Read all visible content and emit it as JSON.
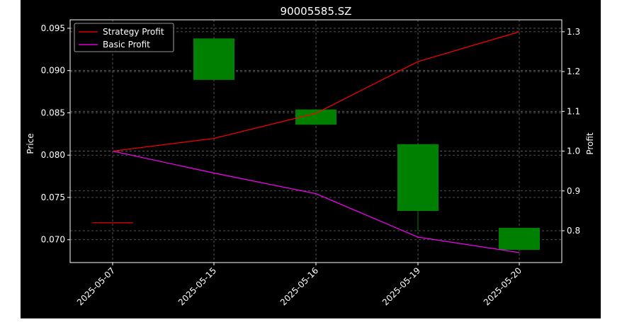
{
  "chart_data": {
    "type": "candlestick",
    "title": "90005585.SZ",
    "xlabel": "",
    "ylabel_left": "Price",
    "ylabel_right": "Profit",
    "categories": [
      "2025-05-07",
      "2025-05-15",
      "2025-05-16",
      "2025-05-19",
      "2025-05-20"
    ],
    "ylim_left": [
      0.0673,
      0.096
    ],
    "ylim_right": [
      0.72,
      1.33
    ],
    "yticks_left": [
      "0.070",
      "0.075",
      "0.080",
      "0.085",
      "0.090",
      "0.095"
    ],
    "yticks_right": [
      "0.8",
      "0.9",
      "1.0",
      "1.1",
      "1.2",
      "1.3"
    ],
    "grid": true,
    "legend_position": "top-left",
    "candles": [
      {
        "date": "2025-05-07",
        "open": 0.072,
        "close": 0.072,
        "high": 0.072,
        "low": 0.072,
        "color": "#ff0000"
      },
      {
        "date": "2025-05-15",
        "open": 0.0889,
        "close": 0.0938,
        "high": 0.0938,
        "low": 0.0889,
        "color": "#008000"
      },
      {
        "date": "2025-05-16",
        "open": 0.0836,
        "close": 0.0854,
        "high": 0.0854,
        "low": 0.0836,
        "color": "#008000"
      },
      {
        "date": "2025-05-19",
        "open": 0.0734,
        "close": 0.0813,
        "high": 0.0813,
        "low": 0.071,
        "color": "#008000"
      },
      {
        "date": "2025-05-20",
        "open": 0.0688,
        "close": 0.0714,
        "high": 0.0714,
        "low": 0.0688,
        "color": "#008000"
      }
    ],
    "series": [
      {
        "name": "Strategy Profit",
        "color": "#ff0000",
        "values": [
          1.0,
          1.032,
          1.095,
          1.225,
          1.3
        ]
      },
      {
        "name": "Basic Profit",
        "color": "#ff00ff",
        "values": [
          1.0,
          0.945,
          0.893,
          0.784,
          0.745
        ]
      }
    ]
  }
}
